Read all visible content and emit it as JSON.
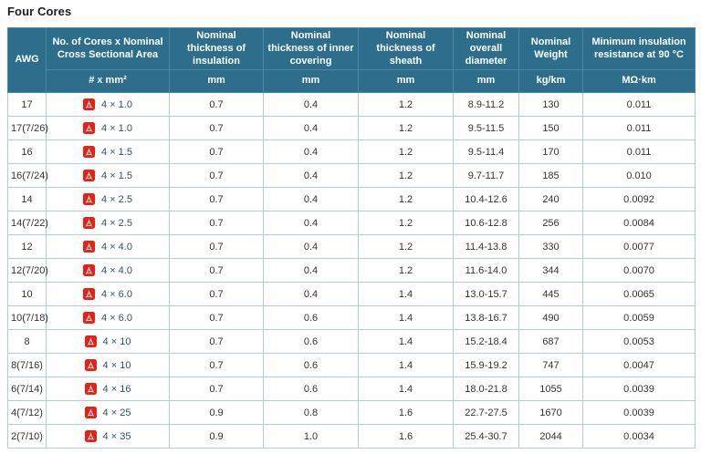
{
  "page": {
    "title": "Four Cores"
  },
  "colors": {
    "header_bg": "#2d6e8c",
    "header_divider": "#4e87a0",
    "body_border": "#b5c9d0",
    "body_text": "#333333",
    "size_link_text": "#315263",
    "pdf_icon_red": "#e22318",
    "header_text": "#ffffff"
  },
  "table": {
    "headers": [
      {
        "label": "AWG",
        "unit": ""
      },
      {
        "label": "No. of Cores x Nominal Cross Sectional Area",
        "unit": "# x mm²"
      },
      {
        "label": "Nominal thickness of insulation",
        "unit": "mm"
      },
      {
        "label": "Nominal thickness of inner covering",
        "unit": "mm"
      },
      {
        "label": "Nominal thickness of sheath",
        "unit": "mm"
      },
      {
        "label": "Nominal overall diameter",
        "unit": "mm"
      },
      {
        "label": "Nominal Weight",
        "unit": "kg/km"
      },
      {
        "label": "Minimum insulation resistance at 90 °C",
        "unit": "MΩ·km"
      }
    ],
    "pdf_icon_name": "pdf-icon",
    "rows": [
      {
        "awg": "17",
        "size": "4 × 1.0",
        "insulation": "0.7",
        "inner_covering": "0.4",
        "sheath": "1.2",
        "diameter": "8.9-11.2",
        "weight": "130",
        "resistance": "0.011"
      },
      {
        "awg": "17(7/26)",
        "size": "4 × 1.0",
        "insulation": "0.7",
        "inner_covering": "0.4",
        "sheath": "1.2",
        "diameter": "9.5-11.5",
        "weight": "150",
        "resistance": "0.011"
      },
      {
        "awg": "16",
        "size": "4 × 1.5",
        "insulation": "0.7",
        "inner_covering": "0.4",
        "sheath": "1.2",
        "diameter": "9.5-11.4",
        "weight": "170",
        "resistance": "0.011"
      },
      {
        "awg": "16(7/24)",
        "size": "4 × 1.5",
        "insulation": "0.7",
        "inner_covering": "0.4",
        "sheath": "1.2",
        "diameter": "9.7-11.7",
        "weight": "185",
        "resistance": "0.010"
      },
      {
        "awg": "14",
        "size": "4 × 2.5",
        "insulation": "0.7",
        "inner_covering": "0.4",
        "sheath": "1.2",
        "diameter": "10.4-12.6",
        "weight": "240",
        "resistance": "0.0092"
      },
      {
        "awg": "14(7/22)",
        "size": "4 × 2.5",
        "insulation": "0.7",
        "inner_covering": "0.4",
        "sheath": "1.2",
        "diameter": "10.6-12.8",
        "weight": "256",
        "resistance": "0.0084"
      },
      {
        "awg": "12",
        "size": "4 × 4.0",
        "insulation": "0.7",
        "inner_covering": "0.4",
        "sheath": "1.2",
        "diameter": "11.4-13.8",
        "weight": "330",
        "resistance": "0.0077"
      },
      {
        "awg": "12(7/20)",
        "size": "4 × 4.0",
        "insulation": "0.7",
        "inner_covering": "0.4",
        "sheath": "1.2",
        "diameter": "11.6-14.0",
        "weight": "344",
        "resistance": "0.0070"
      },
      {
        "awg": "10",
        "size": "4 × 6.0",
        "insulation": "0.7",
        "inner_covering": "0.4",
        "sheath": "1.4",
        "diameter": "13.0-15.7",
        "weight": "445",
        "resistance": "0.0065"
      },
      {
        "awg": "10(7/18)",
        "size": "4 × 6.0",
        "insulation": "0.7",
        "inner_covering": "0.6",
        "sheath": "1.4",
        "diameter": "13.8-16.7",
        "weight": "490",
        "resistance": "0.0059"
      },
      {
        "awg": "8",
        "size": "4 × 10",
        "insulation": "0.7",
        "inner_covering": "0.6",
        "sheath": "1.4",
        "diameter": "15.2-18.4",
        "weight": "687",
        "resistance": "0.0053"
      },
      {
        "awg": "8(7/16)",
        "size": "4 × 10",
        "insulation": "0.7",
        "inner_covering": "0.6",
        "sheath": "1.4",
        "diameter": "15.9-19.2",
        "weight": "747",
        "resistance": "0.0047"
      },
      {
        "awg": "6(7/14)",
        "size": "4 × 16",
        "insulation": "0.7",
        "inner_covering": "0.6",
        "sheath": "1.4",
        "diameter": "18.0-21.8",
        "weight": "1055",
        "resistance": "0.0039"
      },
      {
        "awg": "4(7/12)",
        "size": "4 × 25",
        "insulation": "0.9",
        "inner_covering": "0.8",
        "sheath": "1.6",
        "diameter": "22.7-27.5",
        "weight": "1670",
        "resistance": "0.0039"
      },
      {
        "awg": "2(7/10)",
        "size": "4 × 35",
        "insulation": "0.9",
        "inner_covering": "1.0",
        "sheath": "1.6",
        "diameter": "25.4-30.7",
        "weight": "2044",
        "resistance": "0.0034"
      }
    ]
  }
}
